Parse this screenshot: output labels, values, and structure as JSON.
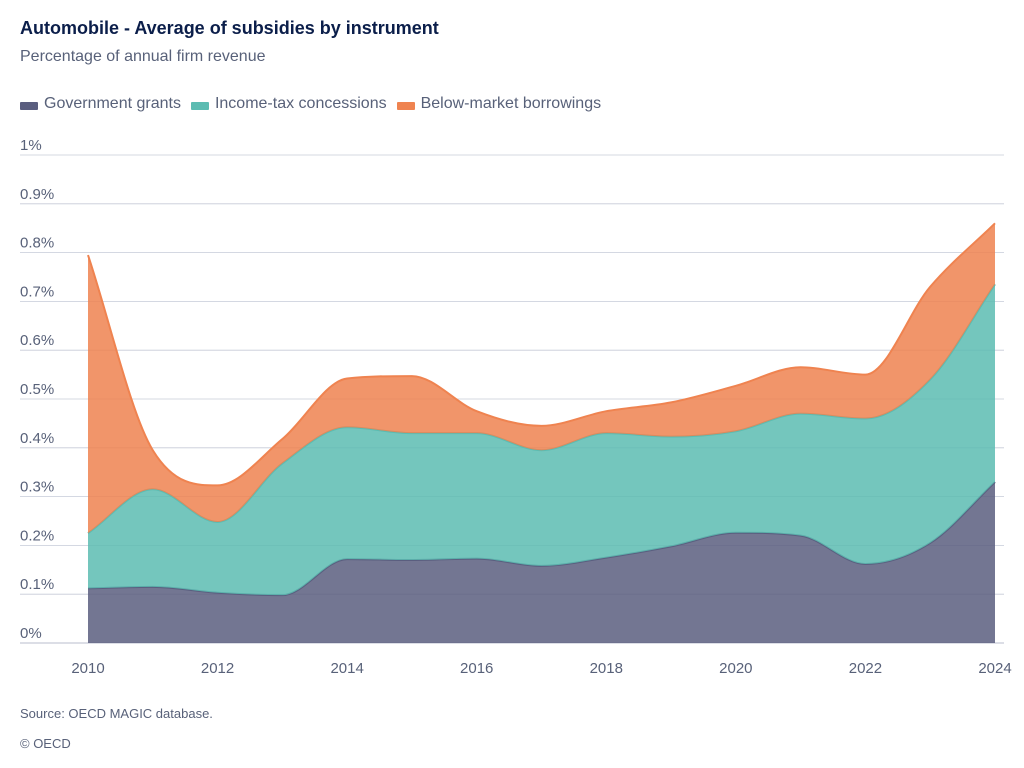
{
  "header": {
    "title": "Automobile - Average of subsidies by instrument",
    "subtitle": "Percentage of annual firm revenue"
  },
  "footer": {
    "source": "Source: OECD MAGIC database.",
    "copyright": "© OECD"
  },
  "colors": {
    "government_grants": "#5a5e7f",
    "income_tax": "#5cbcb2",
    "below_market": "#ef8350",
    "grid": "#c6cbd8",
    "text": "#586179",
    "title": "#0b1e4a"
  },
  "chart_data": {
    "type": "area",
    "stacked": true,
    "title": "Automobile - Average of subsidies by instrument",
    "subtitle": "Percentage of annual firm revenue",
    "x": [
      2010,
      2011,
      2012,
      2013,
      2014,
      2015,
      2016,
      2017,
      2018,
      2019,
      2020,
      2021,
      2022,
      2023,
      2024
    ],
    "x_ticks": [
      "2010",
      "2012",
      "2014",
      "2016",
      "2018",
      "2020",
      "2022",
      "2024"
    ],
    "y_ticks": [
      "0%",
      "0.1%",
      "0.2%",
      "0.3%",
      "0.4%",
      "0.5%",
      "0.6%",
      "0.7%",
      "0.8%",
      "0.9%",
      "1%"
    ],
    "ylim": [
      0,
      1
    ],
    "y_unit": "%",
    "grid": true,
    "legend_position": "top-left",
    "series": [
      {
        "name": "Government grants",
        "color": "#5a5e7f",
        "values": [
          0.112,
          0.115,
          0.103,
          0.098,
          0.172,
          0.17,
          0.173,
          0.158,
          0.175,
          0.198,
          0.226,
          0.22,
          0.162,
          0.205,
          0.33
        ]
      },
      {
        "name": "Income-tax concessions",
        "color": "#5cbcb2",
        "values": [
          0.113,
          0.2,
          0.145,
          0.27,
          0.27,
          0.26,
          0.257,
          0.237,
          0.255,
          0.225,
          0.208,
          0.25,
          0.298,
          0.335,
          0.405
        ]
      },
      {
        "name": "Below-market borrowings",
        "color": "#ef8350",
        "values": [
          0.57,
          0.08,
          0.075,
          0.05,
          0.1,
          0.117,
          0.045,
          0.05,
          0.045,
          0.07,
          0.093,
          0.095,
          0.09,
          0.19,
          0.125
        ]
      }
    ]
  }
}
